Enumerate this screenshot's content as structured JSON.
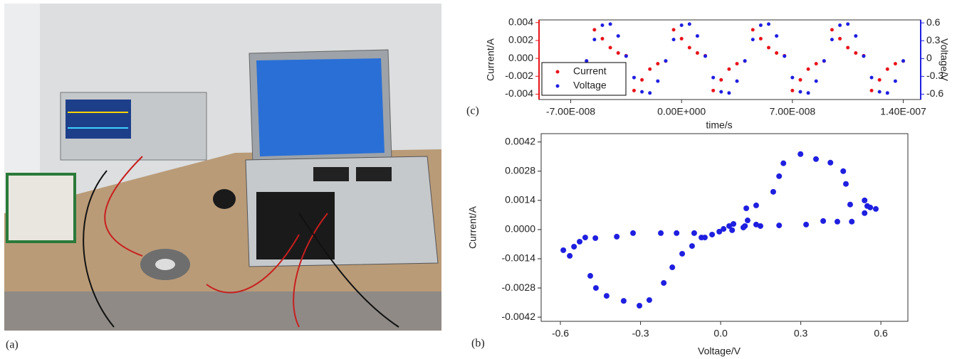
{
  "figure": {
    "panel_labels": [
      "(a)",
      "(c)",
      "(b)"
    ]
  },
  "chart_data": [
    {
      "type": "scatter",
      "x_label": "time/s",
      "y_label": "Current/A",
      "y2_label": "Voltage/V",
      "x": [
        -6e-08,
        -5.5e-08,
        -5e-08,
        -4.5e-08,
        -4e-08,
        -3.5e-08,
        -3e-08,
        -2.5e-08,
        -2e-08,
        -1.5e-08,
        -1e-08,
        -5e-09,
        0,
        5e-09,
        1e-08,
        1.5e-08,
        2e-08,
        2.5e-08,
        3e-08,
        3.5e-08,
        4e-08,
        4.5e-08,
        5e-08,
        5.5e-08,
        6e-08,
        6.5e-08,
        7e-08,
        7.5e-08,
        8e-08,
        8.5e-08,
        9e-08,
        9.5e-08,
        1e-07,
        1.05e-07,
        1.1e-07,
        1.15e-07,
        1.2e-07,
        1.25e-07,
        1.3e-07,
        1.35e-07,
        1.4e-07
      ],
      "series": [
        {
          "name": "Current",
          "color": "#e8141b",
          "axis": "y",
          "values": [
            -0.0003,
            0.0032,
            0.0022,
            0.0012,
            0.0006,
            0.0003,
            -0.0036,
            -0.0024,
            -0.0012,
            -0.0006,
            -0.0003,
            0.0032,
            0.0022,
            0.0012,
            0.0006,
            0.0003,
            -0.0036,
            -0.0024,
            -0.0012,
            -0.0006,
            -0.0003,
            0.0032,
            0.0022,
            0.0012,
            0.0006,
            0.0003,
            -0.0036,
            -0.0024,
            -0.0012,
            -0.0006,
            -0.0003,
            0.0032,
            0.0022,
            0.0012,
            0.0006,
            0.0003,
            -0.0036,
            -0.0024,
            -0.0012,
            -0.0006,
            -0.0003
          ]
        },
        {
          "name": "Voltage",
          "color": "#1f1fe0",
          "axis": "y2",
          "values": [
            -0.04,
            0.32,
            0.56,
            0.58,
            0.38,
            0.04,
            -0.32,
            -0.56,
            -0.58,
            -0.38,
            -0.04,
            0.32,
            0.56,
            0.58,
            0.38,
            0.04,
            -0.32,
            -0.56,
            -0.58,
            -0.38,
            -0.04,
            0.32,
            0.56,
            0.58,
            0.38,
            0.04,
            -0.32,
            -0.56,
            -0.58,
            -0.38,
            -0.04,
            0.32,
            0.56,
            0.58,
            0.38,
            0.04,
            -0.32,
            -0.56,
            -0.58,
            -0.38,
            -0.04
          ]
        }
      ],
      "xlim": [
        -9e-08,
        1.51e-07
      ],
      "xticks": [
        {
          "value": -7e-08,
          "label": "-7.00E-008"
        },
        {
          "value": 0,
          "label": "0.00E+000"
        },
        {
          "value": 7e-08,
          "label": "7.00E-008"
        },
        {
          "value": 1.4e-07,
          "label": "1.40E-007"
        }
      ],
      "ylim": [
        -0.0046,
        0.0043
      ],
      "yticks": [
        0.004,
        0.002,
        {
          "value": 0,
          "label": "0.000"
        },
        -0.002,
        -0.004
      ],
      "y2lim": [
        -0.69,
        0.65
      ],
      "y2ticks": [
        0.6,
        0.3,
        0,
        -0.3,
        -0.6
      ],
      "legend": "upper left"
    },
    {
      "type": "scatter",
      "x_label": "Voltage/V",
      "y_label": "Current/A",
      "color": "#1f1fe0",
      "x": [
        -0.589,
        -0.565,
        -0.549,
        -0.528,
        -0.507,
        -0.469,
        -0.389,
        -0.328,
        -0.224,
        -0.165,
        -0.099,
        -0.032,
        -0.059,
        -0.005,
        0.011,
        0.032,
        0.048,
        0.085,
        0.101,
        0.133,
        0.133,
        0.096,
        0.197,
        0.219,
        0.235,
        0.299,
        0.357,
        0.411,
        0.459,
        0.469,
        0.485,
        0.539,
        0.549,
        0.56,
        0.581,
        0.539,
        0.491,
        0.437,
        0.384,
        0.32,
        0.219,
        0.149,
        0.091,
        0.043,
        -0.072,
        -0.107,
        -0.144,
        -0.181,
        -0.213,
        -0.267,
        -0.304,
        -0.363,
        -0.427,
        -0.467,
        -0.488
      ],
      "values": [
        -0.00099,
        -0.00126,
        -0.00082,
        -0.00058,
        -0.00038,
        -0.00041,
        -0.00034,
        -0.00017,
        -0.00017,
        -0.00017,
        -0.00017,
        -0.00024,
        -0.00038,
        -0.0001,
        3e-05,
        0.00017,
        0.00027,
        0.0001,
        0.00044,
        0.00024,
        0.00116,
        0.00102,
        0.00181,
        0.00256,
        0.00318,
        0.00362,
        0.00338,
        0.00321,
        0.0028,
        0.00219,
        0.0012,
        0.0014,
        0.00113,
        0.00106,
        0.00099,
        0.00079,
        0.00038,
        0.00038,
        0.00041,
        0.00024,
        0.0002,
        0.00017,
        0.00017,
        -3e-05,
        -0.00038,
        -0.00079,
        -0.00116,
        -0.00181,
        -0.00256,
        -0.00338,
        -0.00365,
        -0.00342,
        -0.00318,
        -0.0028,
        -0.00222
      ],
      "xlim": [
        -0.672,
        0.701
      ],
      "xticks": [
        -0.6,
        -0.3,
        {
          "value": 0,
          "label": "0.0"
        },
        0.3,
        0.6
      ],
      "ylim": [
        -0.0044,
        0.0046
      ],
      "yticks": [
        0.0042,
        0.0028,
        0.0014,
        {
          "value": 0,
          "label": "0.0000"
        },
        -0.0014,
        -0.0028,
        -0.0042
      ]
    }
  ]
}
